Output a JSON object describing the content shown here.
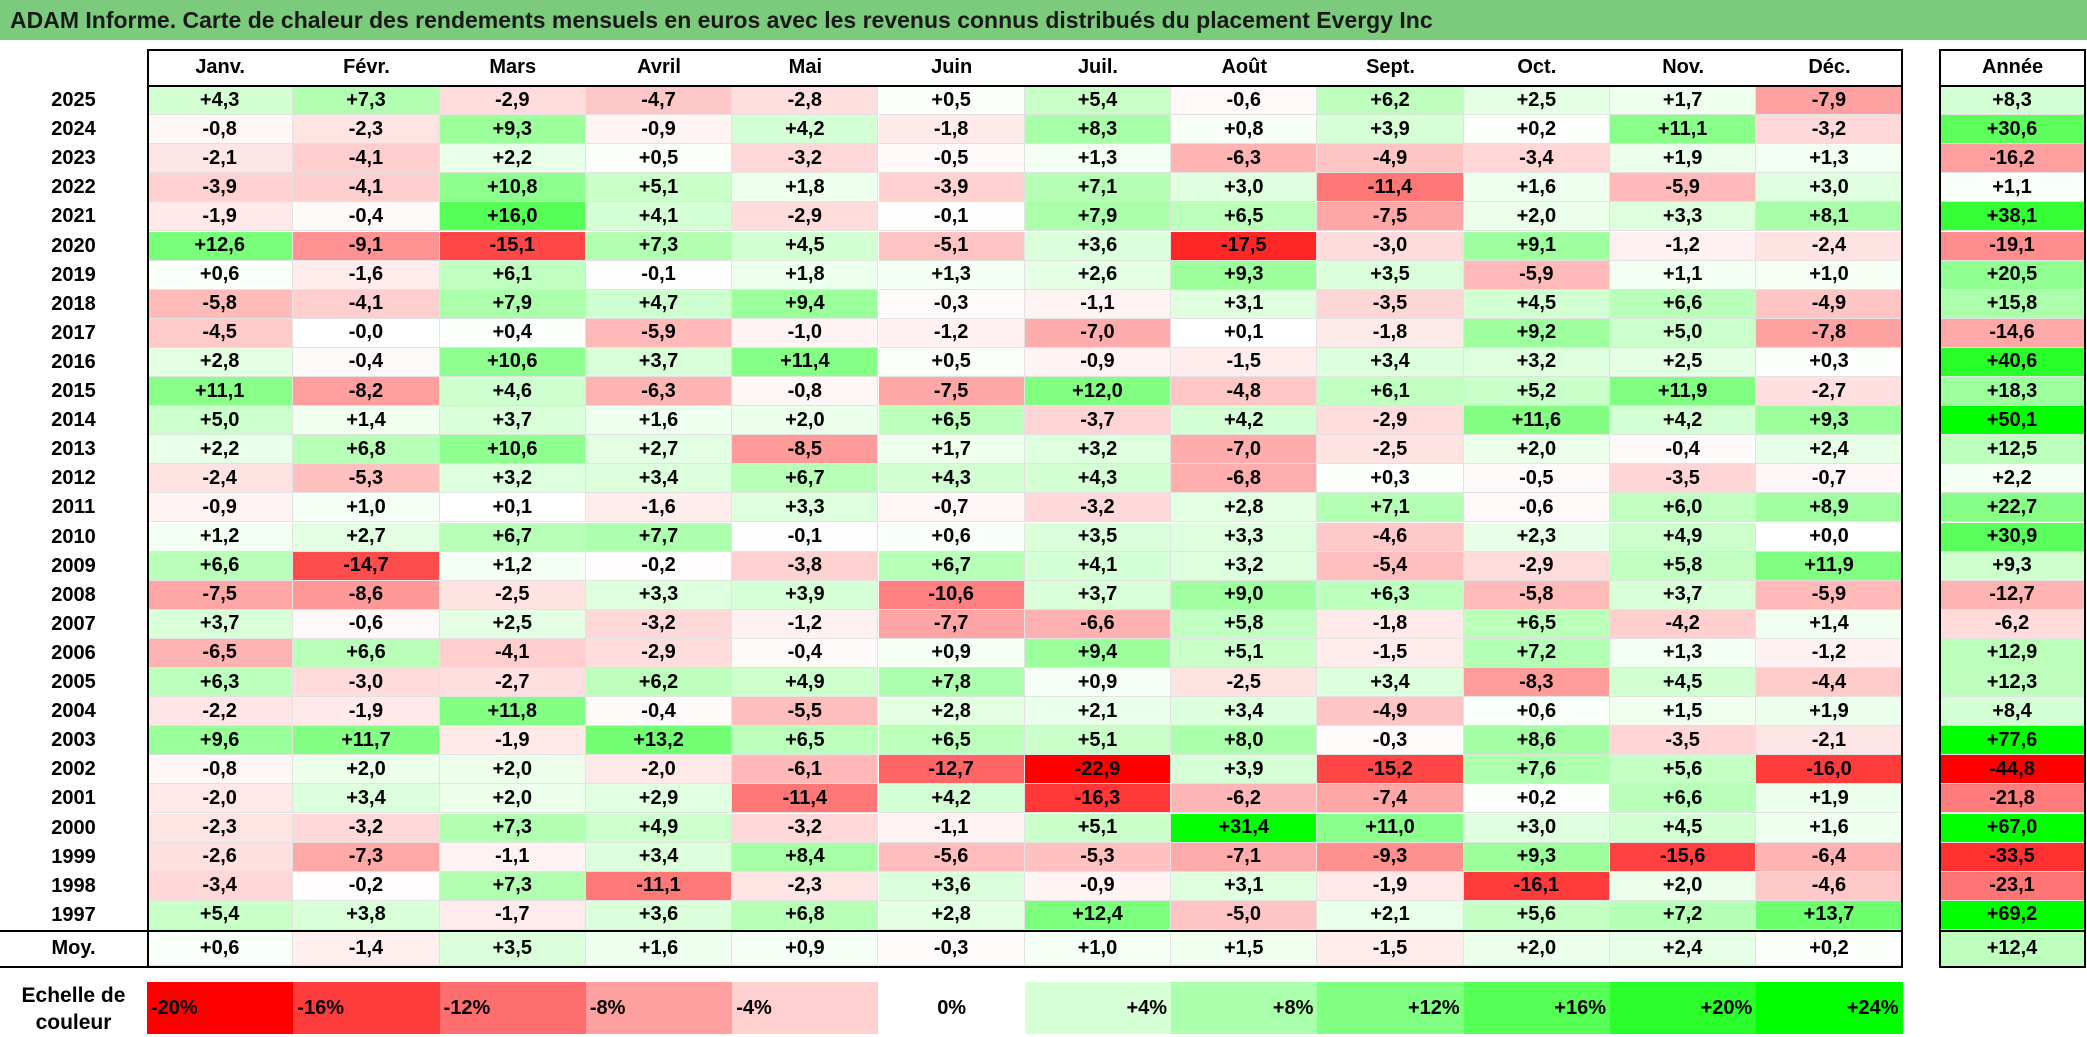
{
  "title": "ADAM Informe. Carte de chaleur des rendements mensuels en euros avec les revenus connus distribués du placement Evergy Inc",
  "chart_data": {
    "type": "heatmap",
    "columns": [
      "Janv.",
      "Févr.",
      "Mars",
      "Avril",
      "Mai",
      "Juin",
      "Juil.",
      "Août",
      "Sept.",
      "Oct.",
      "Nov.",
      "Déc."
    ],
    "year_header": "Année",
    "rows": [
      {
        "label": "2025",
        "values": [
          "+4,3",
          "+7,3",
          "-2,9",
          "-4,7",
          "-2,8",
          "+0,5",
          "+5,4",
          "-0,6",
          "+6,2",
          "+2,5",
          "+1,7",
          "-7,9"
        ],
        "year": "+8,3"
      },
      {
        "label": "2024",
        "values": [
          "-0,8",
          "-2,3",
          "+9,3",
          "-0,9",
          "+4,2",
          "-1,8",
          "+8,3",
          "+0,8",
          "+3,9",
          "+0,2",
          "+11,1",
          "-3,2"
        ],
        "year": "+30,6"
      },
      {
        "label": "2023",
        "values": [
          "-2,1",
          "-4,1",
          "+2,2",
          "+0,5",
          "-3,2",
          "-0,5",
          "+1,3",
          "-6,3",
          "-4,9",
          "-3,4",
          "+1,9",
          "+1,3"
        ],
        "year": "-16,2"
      },
      {
        "label": "2022",
        "values": [
          "-3,9",
          "-4,1",
          "+10,8",
          "+5,1",
          "+1,8",
          "-3,9",
          "+7,1",
          "+3,0",
          "-11,4",
          "+1,6",
          "-5,9",
          "+3,0"
        ],
        "year": "+1,1"
      },
      {
        "label": "2021",
        "values": [
          "-1,9",
          "-0,4",
          "+16,0",
          "+4,1",
          "-2,9",
          "-0,1",
          "+7,9",
          "+6,5",
          "-7,5",
          "+2,0",
          "+3,3",
          "+8,1"
        ],
        "year": "+38,1"
      },
      {
        "label": "2020",
        "values": [
          "+12,6",
          "-9,1",
          "-15,1",
          "+7,3",
          "+4,5",
          "-5,1",
          "+3,6",
          "-17,5",
          "-3,0",
          "+9,1",
          "-1,2",
          "-2,4"
        ],
        "year": "-19,1"
      },
      {
        "label": "2019",
        "values": [
          "+0,6",
          "-1,6",
          "+6,1",
          "-0,1",
          "+1,8",
          "+1,3",
          "+2,6",
          "+9,3",
          "+3,5",
          "-5,9",
          "+1,1",
          "+1,0"
        ],
        "year": "+20,5"
      },
      {
        "label": "2018",
        "values": [
          "-5,8",
          "-4,1",
          "+7,9",
          "+4,7",
          "+9,4",
          "-0,3",
          "-1,1",
          "+3,1",
          "-3,5",
          "+4,5",
          "+6,6",
          "-4,9"
        ],
        "year": "+15,8"
      },
      {
        "label": "2017",
        "values": [
          "-4,5",
          "-0,0",
          "+0,4",
          "-5,9",
          "-1,0",
          "-1,2",
          "-7,0",
          "+0,1",
          "-1,8",
          "+9,2",
          "+5,0",
          "-7,8"
        ],
        "year": "-14,6"
      },
      {
        "label": "2016",
        "values": [
          "+2,8",
          "-0,4",
          "+10,6",
          "+3,7",
          "+11,4",
          "+0,5",
          "-0,9",
          "-1,5",
          "+3,4",
          "+3,2",
          "+2,5",
          "+0,3"
        ],
        "year": "+40,6"
      },
      {
        "label": "2015",
        "values": [
          "+11,1",
          "-8,2",
          "+4,6",
          "-6,3",
          "-0,8",
          "-7,5",
          "+12,0",
          "-4,8",
          "+6,1",
          "+5,2",
          "+11,9",
          "-2,7"
        ],
        "year": "+18,3"
      },
      {
        "label": "2014",
        "values": [
          "+5,0",
          "+1,4",
          "+3,7",
          "+1,6",
          "+2,0",
          "+6,5",
          "-3,7",
          "+4,2",
          "-2,9",
          "+11,6",
          "+4,2",
          "+9,3"
        ],
        "year": "+50,1"
      },
      {
        "label": "2013",
        "values": [
          "+2,2",
          "+6,8",
          "+10,6",
          "+2,7",
          "-8,5",
          "+1,7",
          "+3,2",
          "-7,0",
          "-2,5",
          "+2,0",
          "-0,4",
          "+2,4"
        ],
        "year": "+12,5"
      },
      {
        "label": "2012",
        "values": [
          "-2,4",
          "-5,3",
          "+3,2",
          "+3,4",
          "+6,7",
          "+4,3",
          "+4,3",
          "-6,8",
          "+0,3",
          "-0,5",
          "-3,5",
          "-0,7"
        ],
        "year": "+2,2"
      },
      {
        "label": "2011",
        "values": [
          "-0,9",
          "+1,0",
          "+0,1",
          "-1,6",
          "+3,3",
          "-0,7",
          "-3,2",
          "+2,8",
          "+7,1",
          "-0,6",
          "+6,0",
          "+8,9"
        ],
        "year": "+22,7"
      },
      {
        "label": "2010",
        "values": [
          "+1,2",
          "+2,7",
          "+6,7",
          "+7,7",
          "-0,1",
          "+0,6",
          "+3,5",
          "+3,3",
          "-4,6",
          "+2,3",
          "+4,9",
          "+0,0"
        ],
        "year": "+30,9"
      },
      {
        "label": "2009",
        "values": [
          "+6,6",
          "-14,7",
          "+1,2",
          "-0,2",
          "-3,8",
          "+6,7",
          "+4,1",
          "+3,2",
          "-5,4",
          "-2,9",
          "+5,8",
          "+11,9"
        ],
        "year": "+9,3"
      },
      {
        "label": "2008",
        "values": [
          "-7,5",
          "-8,6",
          "-2,5",
          "+3,3",
          "+3,9",
          "-10,6",
          "+3,7",
          "+9,0",
          "+6,3",
          "-5,8",
          "+3,7",
          "-5,9"
        ],
        "year": "-12,7"
      },
      {
        "label": "2007",
        "values": [
          "+3,7",
          "-0,6",
          "+2,5",
          "-3,2",
          "-1,2",
          "-7,7",
          "-6,6",
          "+5,8",
          "-1,8",
          "+6,5",
          "-4,2",
          "+1,4"
        ],
        "year": "-6,2"
      },
      {
        "label": "2006",
        "values": [
          "-6,5",
          "+6,6",
          "-4,1",
          "-2,9",
          "-0,4",
          "+0,9",
          "+9,4",
          "+5,1",
          "-1,5",
          "+7,2",
          "+1,3",
          "-1,2"
        ],
        "year": "+12,9"
      },
      {
        "label": "2005",
        "values": [
          "+6,3",
          "-3,0",
          "-2,7",
          "+6,2",
          "+4,9",
          "+7,8",
          "+0,9",
          "-2,5",
          "+3,4",
          "-8,3",
          "+4,5",
          "-4,4"
        ],
        "year": "+12,3"
      },
      {
        "label": "2004",
        "values": [
          "-2,2",
          "-1,9",
          "+11,8",
          "-0,4",
          "-5,5",
          "+2,8",
          "+2,1",
          "+3,4",
          "-4,9",
          "+0,6",
          "+1,5",
          "+1,9"
        ],
        "year": "+8,4"
      },
      {
        "label": "2003",
        "values": [
          "+9,6",
          "+11,7",
          "-1,9",
          "+13,2",
          "+6,5",
          "+6,5",
          "+5,1",
          "+8,0",
          "-0,3",
          "+8,6",
          "-3,5",
          "-2,1"
        ],
        "year": "+77,6"
      },
      {
        "label": "2002",
        "values": [
          "-0,8",
          "+2,0",
          "+2,0",
          "-2,0",
          "-6,1",
          "-12,7",
          "-22,9",
          "+3,9",
          "-15,2",
          "+7,6",
          "+5,6",
          "-16,0"
        ],
        "year": "-44,8"
      },
      {
        "label": "2001",
        "values": [
          "-2,0",
          "+3,4",
          "+2,0",
          "+2,9",
          "-11,4",
          "+4,2",
          "-16,3",
          "-6,2",
          "-7,4",
          "+0,2",
          "+6,6",
          "+1,9"
        ],
        "year": "-21,8"
      },
      {
        "label": "2000",
        "values": [
          "-2,3",
          "-3,2",
          "+7,3",
          "+4,9",
          "-3,2",
          "-1,1",
          "+5,1",
          "+31,4",
          "+11,0",
          "+3,0",
          "+4,5",
          "+1,6"
        ],
        "year": "+67,0"
      },
      {
        "label": "1999",
        "values": [
          "-2,6",
          "-7,3",
          "-1,1",
          "+3,4",
          "+8,4",
          "-5,6",
          "-5,3",
          "-7,1",
          "-9,3",
          "+9,3",
          "-15,6",
          "-6,4"
        ],
        "year": "-33,5"
      },
      {
        "label": "1998",
        "values": [
          "-3,4",
          "-0,2",
          "+7,3",
          "-11,1",
          "-2,3",
          "+3,6",
          "-0,9",
          "+3,1",
          "-1,9",
          "-16,1",
          "+2,0",
          "-4,6"
        ],
        "year": "-23,1"
      },
      {
        "label": "1997",
        "values": [
          "+5,4",
          "+3,8",
          "-1,7",
          "+3,6",
          "+6,8",
          "+2,8",
          "+12,4",
          "-5,0",
          "+2,1",
          "+5,6",
          "+7,2",
          "+13,7"
        ],
        "year": "+69,2"
      }
    ],
    "average_row": {
      "label": "Moy.",
      "values": [
        "+0,6",
        "-1,4",
        "+3,5",
        "+1,6",
        "+0,9",
        "-0,3",
        "+1,0",
        "+1,5",
        "-1,5",
        "+2,0",
        "+2,4",
        "+0,2"
      ],
      "year": "+12,4"
    },
    "color_scale": {
      "label": "Echelle de couleur",
      "stops": [
        {
          "label": "-20%",
          "value": -20,
          "color": "#ff0000"
        },
        {
          "label": "-16%",
          "value": -16,
          "color": "#ff3c3c"
        },
        {
          "label": "-12%",
          "value": -12,
          "color": "#ff6e6e"
        },
        {
          "label": "-8%",
          "value": -8,
          "color": "#ffa0a0"
        },
        {
          "label": "-4%",
          "value": -4,
          "color": "#ffd0d0"
        },
        {
          "label": "0%",
          "value": 0,
          "color": "#ffffff"
        },
        {
          "label": "+4%",
          "value": 4,
          "color": "#d6ffd6"
        },
        {
          "label": "+8%",
          "value": 8,
          "color": "#aaffaa"
        },
        {
          "label": "+12%",
          "value": 12,
          "color": "#80ff80"
        },
        {
          "label": "+16%",
          "value": 16,
          "color": "#55ff55"
        },
        {
          "label": "+20%",
          "value": 20,
          "color": "#2bff2b"
        },
        {
          "label": "+24%",
          "value": 24,
          "color": "#00ff00"
        }
      ]
    }
  }
}
